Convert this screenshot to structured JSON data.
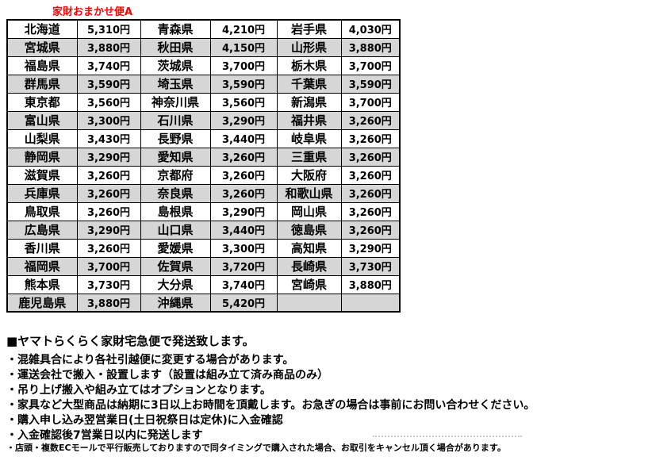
{
  "title": "家財おまかせ便A",
  "table": {
    "rows": [
      [
        {
          "name": "北海道",
          "price": "5,310円"
        },
        {
          "name": "青森県",
          "price": "4,210円"
        },
        {
          "name": "岩手県",
          "price": "4,030円"
        }
      ],
      [
        {
          "name": "宮城県",
          "price": "3,880円"
        },
        {
          "name": "秋田県",
          "price": "4,150円"
        },
        {
          "name": "山形県",
          "price": "3,880円"
        }
      ],
      [
        {
          "name": "福島県",
          "price": "3,740円"
        },
        {
          "name": "茨城県",
          "price": "3,700円"
        },
        {
          "name": "栃木県",
          "price": "3,700円"
        }
      ],
      [
        {
          "name": "群馬県",
          "price": "3,590円"
        },
        {
          "name": "埼玉県",
          "price": "3,590円"
        },
        {
          "name": "千葉県",
          "price": "3,590円"
        }
      ],
      [
        {
          "name": "東京都",
          "price": "3,560円"
        },
        {
          "name": "神奈川県",
          "price": "3,560円"
        },
        {
          "name": "新潟県",
          "price": "3,700円"
        }
      ],
      [
        {
          "name": "富山県",
          "price": "3,300円"
        },
        {
          "name": "石川県",
          "price": "3,290円"
        },
        {
          "name": "福井県",
          "price": "3,260円"
        }
      ],
      [
        {
          "name": "山梨県",
          "price": "3,430円"
        },
        {
          "name": "長野県",
          "price": "3,440円"
        },
        {
          "name": "岐阜県",
          "price": "3,260円"
        }
      ],
      [
        {
          "name": "静岡県",
          "price": "3,290円"
        },
        {
          "name": "愛知県",
          "price": "3,260円"
        },
        {
          "name": "三重県",
          "price": "3,260円"
        }
      ],
      [
        {
          "name": "滋賀県",
          "price": "3,260円"
        },
        {
          "name": "京都府",
          "price": "3,260円"
        },
        {
          "name": "大阪府",
          "price": "3,260円"
        }
      ],
      [
        {
          "name": "兵庫県",
          "price": "3,260円"
        },
        {
          "name": "奈良県",
          "price": "3,260円"
        },
        {
          "name": "和歌山県",
          "price": "3,260円"
        }
      ],
      [
        {
          "name": "鳥取県",
          "price": "3,260円"
        },
        {
          "name": "島根県",
          "price": "3,290円"
        },
        {
          "name": "岡山県",
          "price": "3,260円"
        }
      ],
      [
        {
          "name": "広島県",
          "price": "3,290円"
        },
        {
          "name": "山口県",
          "price": "3,440円"
        },
        {
          "name": "徳島県",
          "price": "3,260円"
        }
      ],
      [
        {
          "name": "香川県",
          "price": "3,260円"
        },
        {
          "name": "愛媛県",
          "price": "3,300円"
        },
        {
          "name": "高知県",
          "price": "3,290円"
        }
      ],
      [
        {
          "name": "福岡県",
          "price": "3,700円"
        },
        {
          "name": "佐賀県",
          "price": "3,720円"
        },
        {
          "name": "長崎県",
          "price": "3,730円"
        }
      ],
      [
        {
          "name": "熊本県",
          "price": "3,730円"
        },
        {
          "name": "大分県",
          "price": "3,740円"
        },
        {
          "name": "宮崎県",
          "price": "3,880円"
        }
      ],
      [
        {
          "name": "鹿児島県",
          "price": "3,880円"
        },
        {
          "name": "沖縄県",
          "price": "5,420円"
        },
        {
          "name": "",
          "price": ""
        }
      ]
    ]
  },
  "notes": {
    "heading": "■ヤマトらくらく家財宅急便で発送致します。",
    "bullets": [
      "・混雑具合により各社引越便に変更する場合があります。",
      "・運送会社で搬入・設置します（設置は組み立て済み商品のみ）",
      "・吊り上げ搬入や組み立てはオプションとなります。",
      "・家具など大型商品は納期に3日以上お時間を頂戴します。お急ぎの場合は事前にお問い合わせください。",
      "・購入申し込み翌営業日(土日祝祭日は定休)に入金確認",
      "・入金確認後7営業日以内に発送します"
    ],
    "footnote": "・店頭・複数ECモールで平行販売しておりますので同タイミングで購入された場合、お取引をキャンセル頂く場合があります。"
  },
  "colors": {
    "title": "#FF0000",
    "row_alt_bg": "#D6D6D6",
    "border": "#000000",
    "text": "#000000"
  }
}
